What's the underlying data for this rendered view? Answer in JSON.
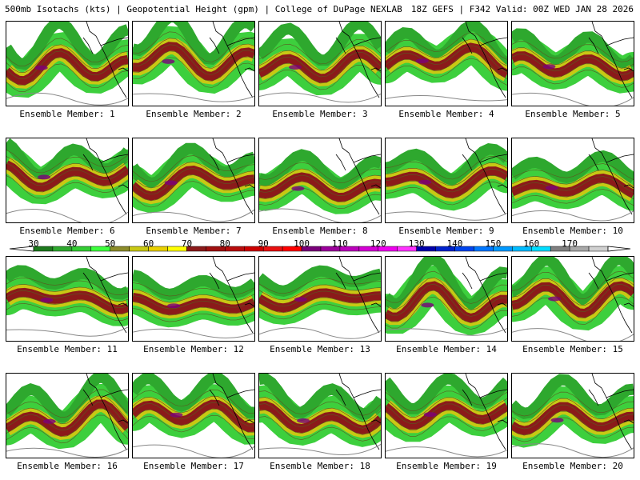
{
  "header": {
    "left": "500mb Isotachs (kts) | Geopotential Height (gpm) | College of DuPage NEXLAB",
    "right": "18Z GEFS | F342 Valid: 00Z WED JAN 28 2026"
  },
  "legend": {
    "ticks": [
      "30",
      "40",
      "50",
      "60",
      "70",
      "80",
      "90",
      "100",
      "110",
      "120",
      "130",
      "140",
      "150",
      "160",
      "170"
    ],
    "colors": [
      "#1d7a1d",
      "#2ea82e",
      "#33cc33",
      "#3dff3d",
      "#8c8c2a",
      "#c8c814",
      "#e8d000",
      "#ffff00",
      "#8b1a1a",
      "#a01010",
      "#b80c0c",
      "#cc0000",
      "#e81010",
      "#ff0000",
      "#7a007a",
      "#9b009b",
      "#bb00bb",
      "#d400d4",
      "#ee00ee",
      "#ff33ff",
      "#0000aa",
      "#0022cc",
      "#0044ee",
      "#0077ff",
      "#0099ff",
      "#00bbff",
      "#00ddff",
      "#808080",
      "#a8a8a8",
      "#d0d0d0"
    ]
  },
  "members": [
    {
      "label": "Ensemble Member: 1"
    },
    {
      "label": "Ensemble Member: 2"
    },
    {
      "label": "Ensemble Member: 3"
    },
    {
      "label": "Ensemble Member: 4"
    },
    {
      "label": "Ensemble Member: 5"
    },
    {
      "label": "Ensemble Member: 6"
    },
    {
      "label": "Ensemble Member: 7"
    },
    {
      "label": "Ensemble Member: 8"
    },
    {
      "label": "Ensemble Member: 9"
    },
    {
      "label": "Ensemble Member: 10"
    },
    {
      "label": "Ensemble Member: 11"
    },
    {
      "label": "Ensemble Member: 12"
    },
    {
      "label": "Ensemble Member: 13"
    },
    {
      "label": "Ensemble Member: 14"
    },
    {
      "label": "Ensemble Member: 15"
    },
    {
      "label": "Ensemble Member: 16"
    },
    {
      "label": "Ensemble Member: 17"
    },
    {
      "label": "Ensemble Member: 18"
    },
    {
      "label": "Ensemble Member: 19"
    },
    {
      "label": "Ensemble Member: 20"
    }
  ]
}
